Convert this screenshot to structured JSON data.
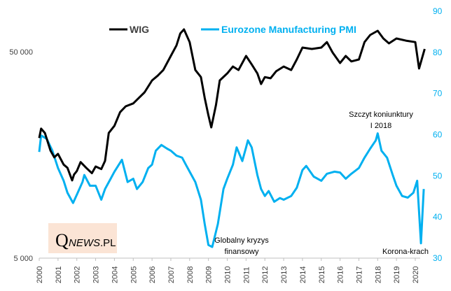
{
  "chart_data": {
    "type": "line",
    "title": "",
    "legend": {
      "placement": "top",
      "entries": [
        "WIG",
        "Eurozone Manufacturing PMI"
      ]
    },
    "left_axis": {
      "scale": "log",
      "range": [
        5000,
        500000
      ],
      "ticks": [
        5000,
        50000
      ],
      "tick_labels": [
        "5 000",
        "50 000"
      ]
    },
    "right_axis": {
      "scale": "linear",
      "range": [
        30,
        90
      ],
      "ticks": [
        30,
        40,
        50,
        60,
        70,
        80,
        90
      ],
      "tick_labels": [
        "30",
        "40",
        "50",
        "60",
        "70",
        "80",
        "90"
      ]
    },
    "x_axis": {
      "range": [
        2000,
        2020.6
      ],
      "tick_labels": [
        "2000",
        "2001",
        "2002",
        "2003",
        "2004",
        "2005",
        "2006",
        "2007",
        "2008",
        "2009",
        "2010",
        "2011",
        "2012",
        "2013",
        "2014",
        "2015",
        "2016",
        "2017",
        "2018",
        "2019",
        "2020"
      ]
    },
    "grid": false,
    "series": [
      {
        "name": "WIG",
        "axis": "left",
        "color": "#000000",
        "x": [
          2000.0,
          2000.1,
          2000.3,
          2000.6,
          2000.8,
          2001.0,
          2001.3,
          2001.5,
          2001.75,
          2001.85,
          2002.0,
          2002.2,
          2002.5,
          2002.8,
          2003.0,
          2003.3,
          2003.5,
          2003.7,
          2004.0,
          2004.3,
          2004.6,
          2005.0,
          2005.3,
          2005.6,
          2006.0,
          2006.3,
          2006.6,
          2007.0,
          2007.3,
          2007.5,
          2007.7,
          2008.0,
          2008.3,
          2008.6,
          2008.8,
          2009.0,
          2009.15,
          2009.4,
          2009.6,
          2010.0,
          2010.3,
          2010.6,
          2011.0,
          2011.3,
          2011.6,
          2011.8,
          2012.0,
          2012.3,
          2012.6,
          2013.0,
          2013.4,
          2013.7,
          2014.0,
          2014.5,
          2015.0,
          2015.3,
          2015.6,
          2016.0,
          2016.3,
          2016.6,
          2017.0,
          2017.3,
          2017.6,
          2018.0,
          2018.3,
          2018.6,
          2019.0,
          2019.5,
          2020.0,
          2020.2,
          2020.5
        ],
        "values": [
          19100,
          21200,
          20200,
          16600,
          15400,
          16000,
          14200,
          13700,
          11900,
          12700,
          13200,
          14600,
          13700,
          12900,
          13900,
          13500,
          14800,
          20200,
          21900,
          25500,
          27200,
          28100,
          29900,
          31800,
          36300,
          38300,
          40800,
          47700,
          53700,
          61300,
          64200,
          55700,
          40800,
          37700,
          29900,
          24600,
          21500,
          27600,
          36300,
          39300,
          42400,
          40800,
          47700,
          43400,
          39300,
          34900,
          37700,
          37200,
          40200,
          42400,
          40800,
          45900,
          52400,
          51600,
          52400,
          55700,
          49600,
          44100,
          47700,
          44900,
          45900,
          55700,
          60300,
          63200,
          58000,
          54900,
          58000,
          56600,
          55700,
          41500,
          51600
        ]
      },
      {
        "name": "Eurozone Manufacturing PMI",
        "axis": "right",
        "color": "#00b0f0",
        "x": [
          2000.0,
          2000.1,
          2000.4,
          2000.7,
          2001.0,
          2001.3,
          2001.5,
          2001.8,
          2002.0,
          2002.3,
          2002.4,
          2002.7,
          2003.0,
          2003.3,
          2003.5,
          2003.8,
          2004.0,
          2004.4,
          2004.7,
          2005.0,
          2005.2,
          2005.5,
          2005.8,
          2006.0,
          2006.2,
          2006.5,
          2006.8,
          2007.0,
          2007.3,
          2007.6,
          2007.8,
          2008.0,
          2008.3,
          2008.6,
          2008.8,
          2009.0,
          2009.2,
          2009.5,
          2009.8,
          2010.0,
          2010.3,
          2010.5,
          2010.8,
          2011.0,
          2011.1,
          2011.3,
          2011.6,
          2011.8,
          2012.0,
          2012.2,
          2012.5,
          2012.8,
          2013.0,
          2013.4,
          2013.7,
          2014.0,
          2014.2,
          2014.6,
          2015.0,
          2015.3,
          2015.7,
          2016.0,
          2016.3,
          2016.6,
          2017.0,
          2017.3,
          2017.6,
          2017.9,
          2018.0,
          2018.2,
          2018.5,
          2018.8,
          2019.0,
          2019.3,
          2019.6,
          2019.9,
          2020.1,
          2020.3,
          2020.45
        ],
        "values": [
          55.8,
          59.8,
          59.0,
          56.1,
          51.9,
          48.8,
          45.9,
          43.4,
          45.4,
          48.5,
          50.2,
          47.6,
          47.6,
          44.2,
          46.8,
          49.3,
          51.0,
          53.9,
          48.5,
          49.3,
          46.8,
          48.5,
          51.9,
          52.7,
          56.1,
          57.5,
          56.6,
          56.1,
          54.9,
          54.4,
          52.7,
          51.0,
          48.5,
          44.2,
          38.3,
          33.2,
          32.7,
          38.3,
          46.8,
          49.3,
          52.7,
          56.9,
          53.6,
          56.9,
          58.6,
          56.9,
          50.2,
          46.8,
          45.1,
          46.3,
          43.7,
          44.6,
          44.2,
          45.1,
          47.1,
          51.4,
          52.4,
          49.8,
          48.8,
          50.5,
          51.0,
          50.8,
          49.3,
          50.5,
          51.9,
          54.4,
          56.6,
          58.6,
          60.3,
          56.1,
          54.4,
          50.2,
          47.6,
          45.1,
          44.7,
          45.9,
          48.8,
          33.6,
          46.8
        ]
      }
    ],
    "annotations": [
      {
        "lines": [
          "Szczyt koniunktury",
          "I 2018"
        ]
      },
      {
        "lines": [
          "Globalny kryzys",
          "finansowy"
        ]
      },
      {
        "lines": [
          "Korona-krach"
        ]
      }
    ]
  },
  "logo": {
    "text": "QNEWS.PL",
    "q": "Q",
    "rest": "NEWS",
    "suffix": ".PL",
    "background": "#fbe4d5"
  }
}
